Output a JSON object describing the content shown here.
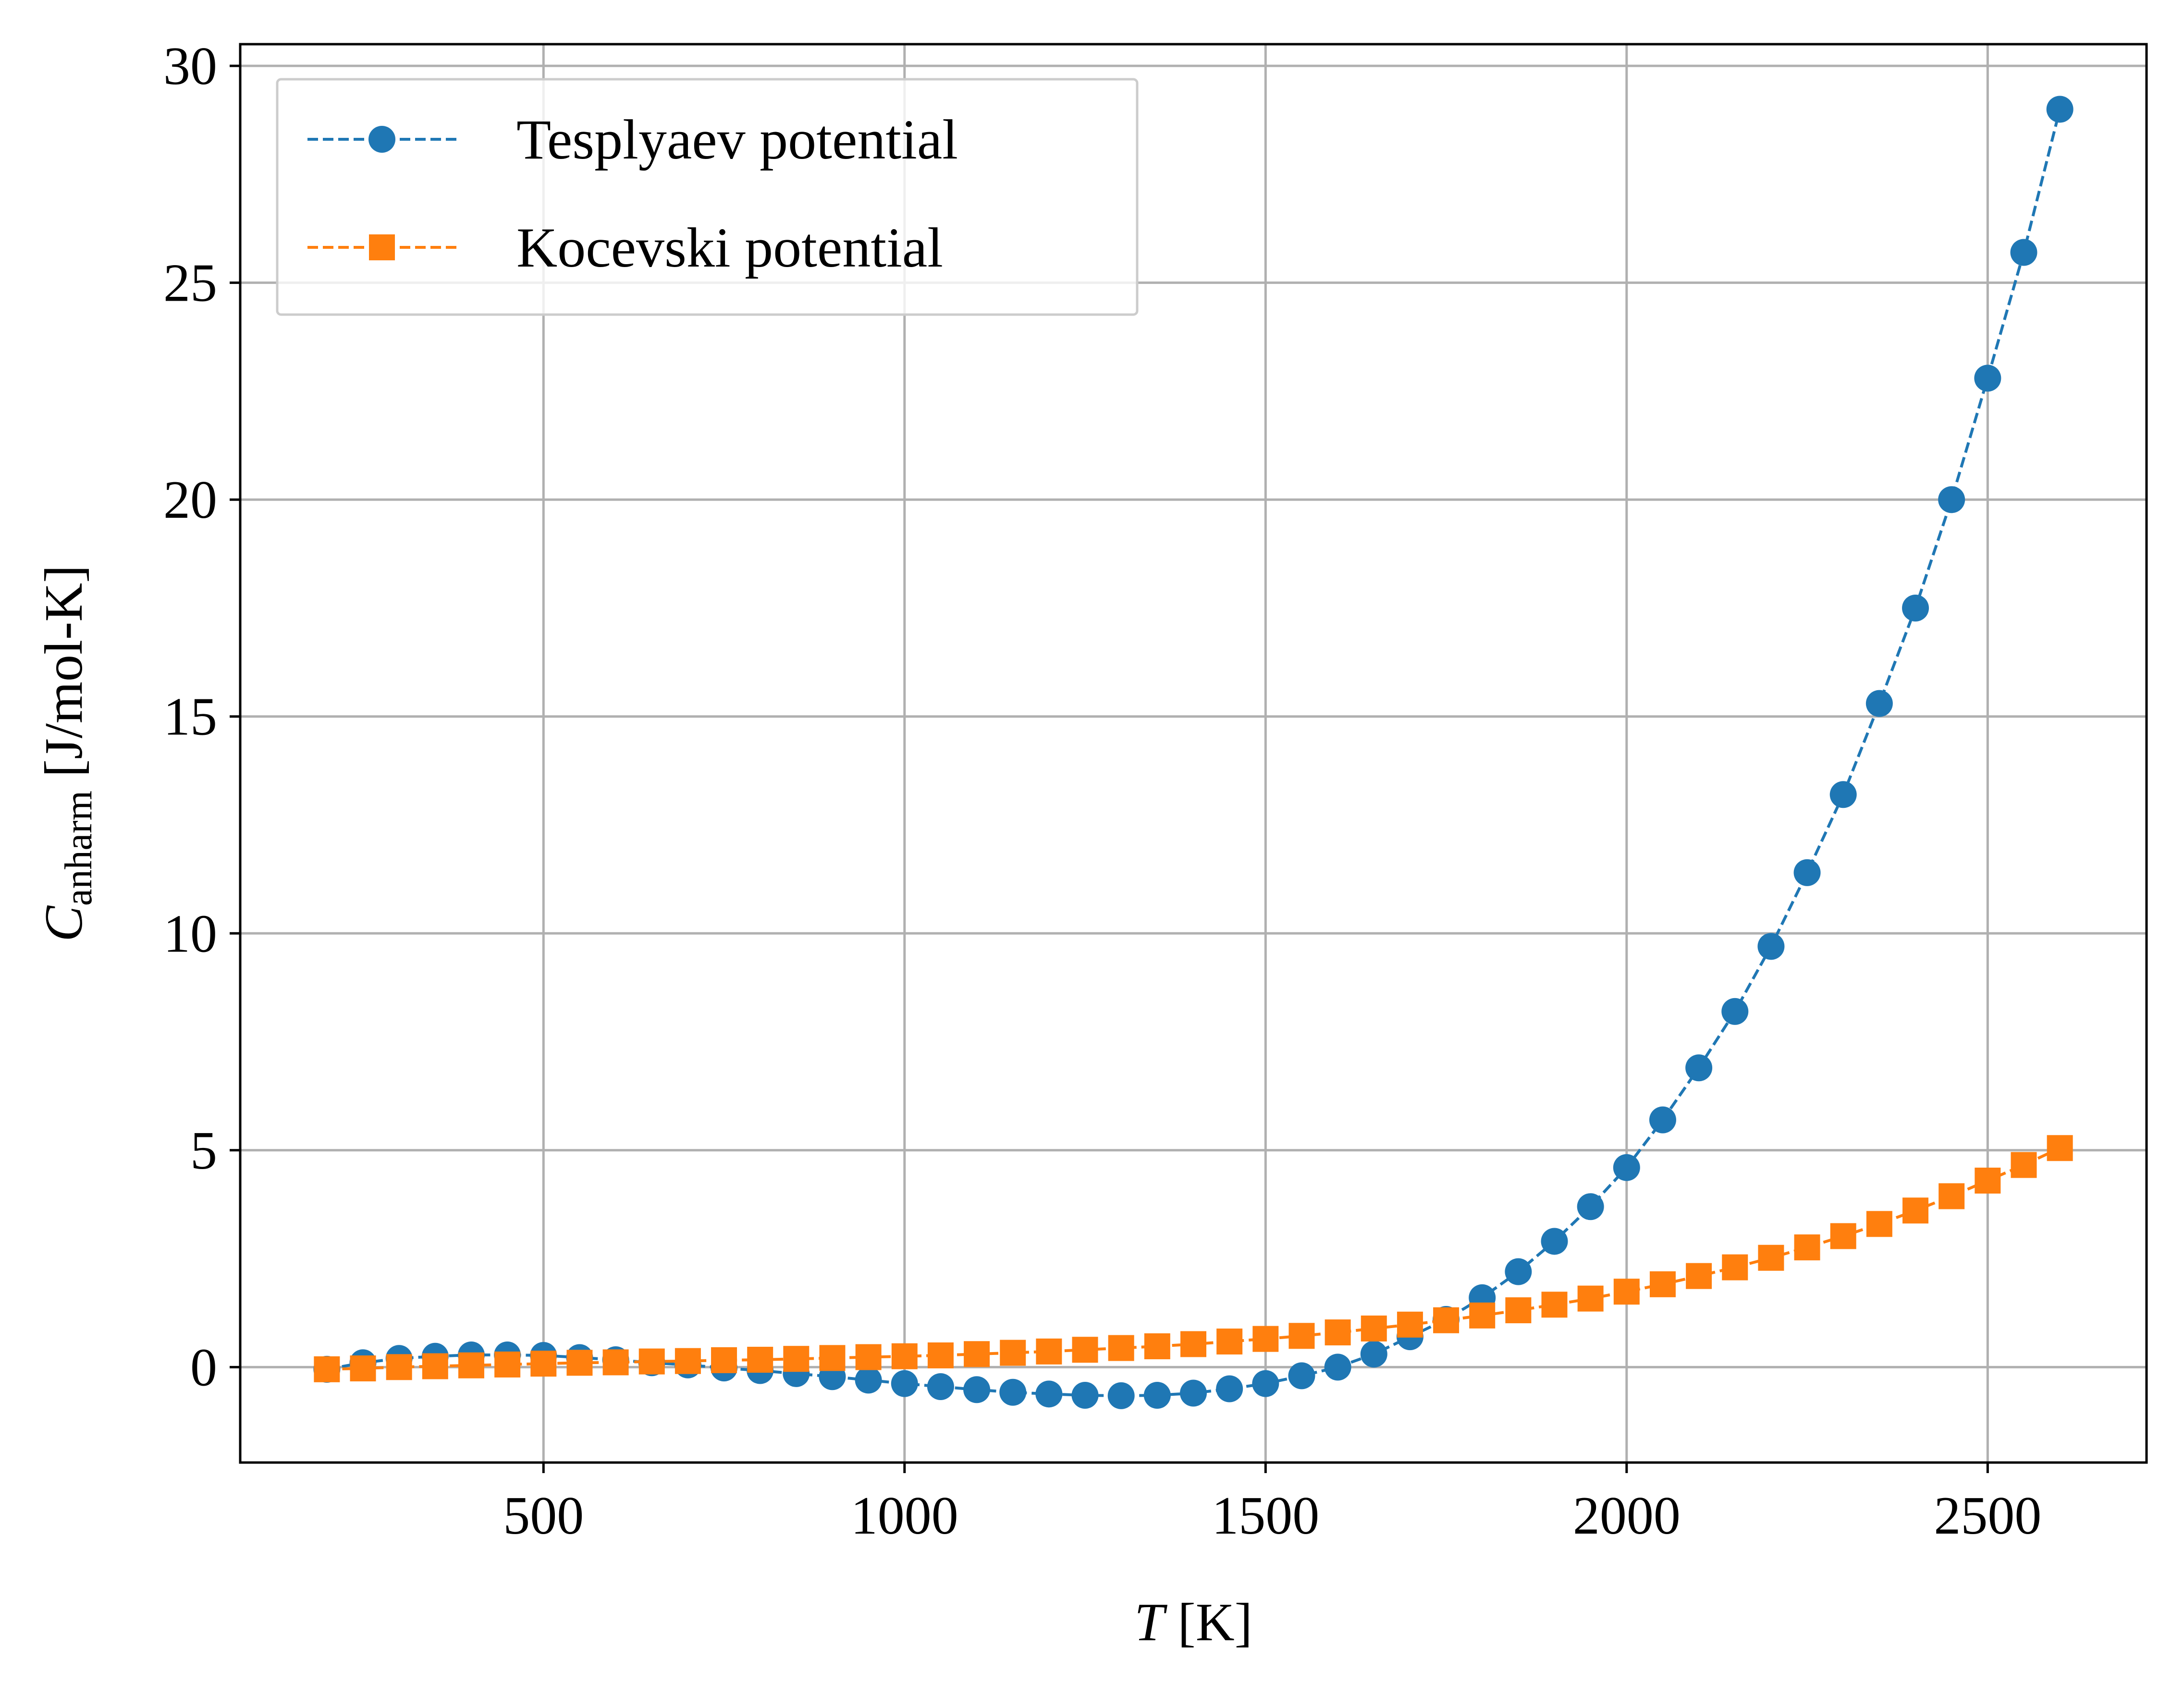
{
  "chart_data": {
    "type": "line",
    "xlabel": {
      "italic": "T",
      "rest": " [K]"
    },
    "ylabel": {
      "italic": "C",
      "subscript": "anharm",
      "rest": " [J/mol-K]"
    },
    "xlim": [
      80,
      2720
    ],
    "ylim": [
      -2.2,
      30.5
    ],
    "xticks": [
      500,
      1000,
      1500,
      2000,
      2500
    ],
    "yticks": [
      0,
      5,
      10,
      15,
      20,
      25,
      30
    ],
    "grid": true,
    "legend_position": "upper-left",
    "series": [
      {
        "name": "Tesplyaev potential",
        "color": "#1f77b4",
        "marker": "circle",
        "linestyle": "dashed",
        "x": [
          200,
          250,
          300,
          350,
          400,
          450,
          500,
          550,
          600,
          650,
          700,
          750,
          800,
          850,
          900,
          950,
          1000,
          1050,
          1100,
          1150,
          1200,
          1250,
          1300,
          1350,
          1400,
          1450,
          1500,
          1550,
          1600,
          1650,
          1700,
          1750,
          1800,
          1850,
          1900,
          1950,
          2000,
          2050,
          2100,
          2150,
          2200,
          2250,
          2300,
          2350,
          2400,
          2450,
          2500,
          2550,
          2600
        ],
        "y": [
          -0.05,
          0.1,
          0.2,
          0.25,
          0.28,
          0.28,
          0.27,
          0.22,
          0.17,
          0.1,
          0.05,
          -0.02,
          -0.08,
          -0.15,
          -0.22,
          -0.3,
          -0.38,
          -0.45,
          -0.52,
          -0.58,
          -0.62,
          -0.65,
          -0.66,
          -0.65,
          -0.6,
          -0.5,
          -0.38,
          -0.2,
          0.0,
          0.3,
          0.7,
          1.1,
          1.6,
          2.2,
          2.9,
          3.7,
          4.6,
          5.7,
          6.9,
          8.2,
          9.7,
          11.4,
          13.2,
          15.3,
          17.5,
          20.0,
          22.8,
          25.7,
          29.0
        ]
      },
      {
        "name": "Kocevski potential",
        "color": "#ff7f0e",
        "marker": "square",
        "linestyle": "dashed",
        "x": [
          200,
          250,
          300,
          350,
          400,
          450,
          500,
          550,
          600,
          650,
          700,
          750,
          800,
          850,
          900,
          950,
          1000,
          1050,
          1100,
          1150,
          1200,
          1250,
          1300,
          1350,
          1400,
          1450,
          1500,
          1550,
          1600,
          1650,
          1700,
          1750,
          1800,
          1850,
          1900,
          1950,
          2000,
          2050,
          2100,
          2150,
          2200,
          2250,
          2300,
          2350,
          2400,
          2450,
          2500,
          2550,
          2600
        ],
        "y": [
          -0.05,
          -0.03,
          0.0,
          0.02,
          0.04,
          0.06,
          0.08,
          0.1,
          0.11,
          0.13,
          0.14,
          0.16,
          0.17,
          0.19,
          0.21,
          0.23,
          0.25,
          0.27,
          0.3,
          0.33,
          0.36,
          0.4,
          0.44,
          0.48,
          0.53,
          0.59,
          0.65,
          0.72,
          0.8,
          0.89,
          0.98,
          1.08,
          1.19,
          1.31,
          1.44,
          1.58,
          1.74,
          1.91,
          2.1,
          2.3,
          2.52,
          2.76,
          3.02,
          3.3,
          3.61,
          3.94,
          4.3,
          4.66,
          5.05
        ]
      }
    ]
  }
}
